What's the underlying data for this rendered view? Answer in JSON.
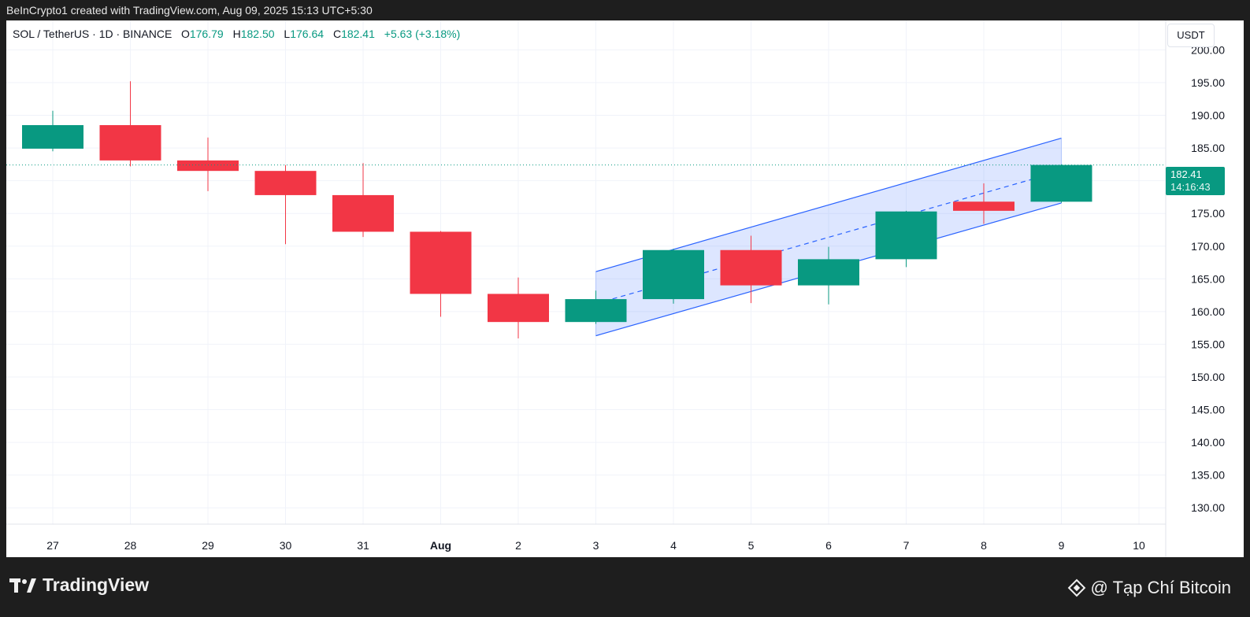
{
  "header": {
    "attribution": "BeInCrypto1 created with TradingView.com, Aug 09, 2025 15:13 UTC+5:30"
  },
  "legend": {
    "symbol": "SOL / TetherUS · 1D · BINANCE",
    "o_label": "O",
    "o_value": "176.79",
    "h_label": "H",
    "h_value": "182.50",
    "l_label": "L",
    "l_value": "176.64",
    "c_label": "C",
    "c_value": "182.41",
    "change": "+5.63 (+3.18%)"
  },
  "price_axis": {
    "unit": "USDT",
    "last_price": "182.41",
    "countdown": "14:16:43"
  },
  "footer": {
    "brand": "TradingView",
    "watermark": "@ Tạp Chí Bitcoin"
  },
  "colors": {
    "up": "#089981",
    "down": "#f23645",
    "channel_line": "#2962ff",
    "channel_fill": "#2962ff"
  },
  "chart_data": {
    "type": "candlestick",
    "x_ticks": [
      "27",
      "28",
      "29",
      "30",
      "31",
      "Aug",
      "2",
      "3",
      "4",
      "5",
      "6",
      "7",
      "8",
      "9",
      "10"
    ],
    "y_ticks": [
      "200.00",
      "195.00",
      "190.00",
      "185.00",
      "180.00",
      "175.00",
      "170.00",
      "165.00",
      "160.00",
      "155.00",
      "150.00",
      "145.00",
      "140.00",
      "135.00",
      "130.00"
    ],
    "ylim": [
      127.5,
      204.5
    ],
    "grid": true,
    "candles": [
      {
        "date": "27",
        "open": 184.9,
        "high": 190.7,
        "low": 184.5,
        "close": 188.5
      },
      {
        "date": "28",
        "open": 188.5,
        "high": 195.2,
        "low": 182.2,
        "close": 183.1
      },
      {
        "date": "29",
        "open": 183.1,
        "high": 186.6,
        "low": 178.4,
        "close": 181.5
      },
      {
        "date": "30",
        "open": 181.5,
        "high": 182.4,
        "low": 170.3,
        "close": 177.8
      },
      {
        "date": "31",
        "open": 177.8,
        "high": 182.7,
        "low": 171.4,
        "close": 172.2
      },
      {
        "date": "Aug",
        "open": 172.2,
        "high": 172.3,
        "low": 159.2,
        "close": 162.7
      },
      {
        "date": "2",
        "open": 162.7,
        "high": 165.2,
        "low": 155.9,
        "close": 158.4
      },
      {
        "date": "3",
        "open": 158.4,
        "high": 163.2,
        "low": 158.1,
        "close": 161.9
      },
      {
        "date": "4",
        "open": 161.9,
        "high": 169.6,
        "low": 161.2,
        "close": 169.4
      },
      {
        "date": "5",
        "open": 169.4,
        "high": 171.6,
        "low": 161.3,
        "close": 164.0
      },
      {
        "date": "6",
        "open": 164.0,
        "high": 169.9,
        "low": 161.1,
        "close": 168.0
      },
      {
        "date": "7",
        "open": 168.0,
        "high": 175.4,
        "low": 166.8,
        "close": 175.3
      },
      {
        "date": "8",
        "open": 176.8,
        "high": 179.6,
        "low": 173.4,
        "close": 175.4
      },
      {
        "date": "9",
        "open": 176.79,
        "high": 182.5,
        "low": 176.64,
        "close": 182.41
      }
    ],
    "last_price": 182.41,
    "channel": {
      "start_date": "3",
      "end_date": "9",
      "upper": [
        166.1,
        186.5
      ],
      "lower": [
        156.3,
        176.6
      ],
      "mid": [
        161.2,
        181.5
      ]
    }
  }
}
